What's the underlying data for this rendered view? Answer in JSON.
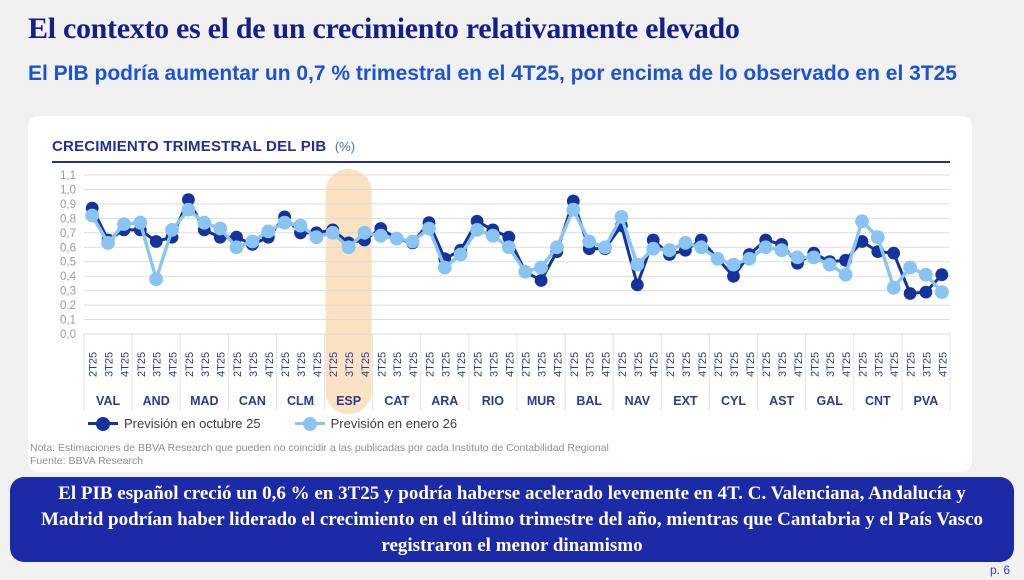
{
  "slide": {
    "title": "El contexto es el de un crecimiento relativamente elevado",
    "subtitle": "El PIB podría aumentar un 0,7 % trimestral en el 4T25, por encima de lo observado en el 3T25",
    "page_number": "p. 6"
  },
  "chart": {
    "title": "CRECIMIENTO TRIMESTRAL DEL PIB",
    "title_suffix": "(%)"
  },
  "notes": {
    "line1": "Nota: Estimaciones de BBVA Research que pueden no coincidir a las publicadas por cada Instituto de Contabilidad Regional",
    "line2": "Fuente: BBVA Research"
  },
  "banner": {
    "text": "El PIB español creció un 0,6 % en 3T25 y podría haberse acelerado levemente en 4T. C. Valenciana, Andalucía y Madrid podrían haber liderado el crecimiento en el último trimestre del año, mientras que Cantabria y el País Vasco registraron el menor dinamismo"
  },
  "chart_data": {
    "type": "line",
    "title": "CRECIMIENTO TRIMESTRAL DEL PIB (%)",
    "categories": [
      "VAL",
      "AND",
      "MAD",
      "CAN",
      "CLM",
      "ESP",
      "CAT",
      "ARA",
      "RIO",
      "MUR",
      "BAL",
      "NAV",
      "EXT",
      "CYL",
      "AST",
      "GAL",
      "CNT",
      "PVA"
    ],
    "quarters": [
      "2T25",
      "3T25",
      "4T25"
    ],
    "series": [
      {
        "name": "Previsión en octubre 25",
        "color": "#14339c",
        "values": [
          [
            0.87,
            0.65,
            0.72
          ],
          [
            0.72,
            0.64,
            0.67
          ],
          [
            0.93,
            0.72,
            0.67
          ],
          [
            0.67,
            0.62,
            0.67
          ],
          [
            0.81,
            0.7,
            0.7
          ],
          [
            0.72,
            0.63,
            0.65
          ],
          [
            0.73,
            0.66,
            0.63
          ],
          [
            0.77,
            0.52,
            0.58
          ],
          [
            0.78,
            0.72,
            0.67
          ],
          [
            0.43,
            0.37,
            0.57
          ],
          [
            0.92,
            0.59,
            0.59
          ],
          [
            0.75,
            0.34,
            0.65
          ],
          [
            0.55,
            0.58,
            0.65
          ],
          [
            0.52,
            0.4,
            0.55
          ],
          [
            0.65,
            0.62,
            0.49
          ],
          [
            0.56,
            0.5,
            0.51
          ],
          [
            0.64,
            0.57,
            0.56
          ],
          [
            0.28,
            0.29,
            0.41
          ]
        ]
      },
      {
        "name": "Previsión en enero 26",
        "color": "#8ac4f2",
        "values": [
          [
            0.82,
            0.63,
            0.76
          ],
          [
            0.77,
            0.38,
            0.72
          ],
          [
            0.86,
            0.77,
            0.73
          ],
          [
            0.6,
            0.64,
            0.71
          ],
          [
            0.77,
            0.75,
            0.67
          ],
          [
            0.7,
            0.6,
            0.7
          ],
          [
            0.68,
            0.66,
            0.64
          ],
          [
            0.73,
            0.46,
            0.55
          ],
          [
            0.72,
            0.68,
            0.6
          ],
          [
            0.43,
            0.46,
            0.6
          ],
          [
            0.86,
            0.64,
            0.6
          ],
          [
            0.81,
            0.48,
            0.59
          ],
          [
            0.58,
            0.63,
            0.6
          ],
          [
            0.52,
            0.48,
            0.52
          ],
          [
            0.6,
            0.58,
            0.53
          ],
          [
            0.53,
            0.48,
            0.41
          ],
          [
            0.78,
            0.67,
            0.32
          ],
          [
            0.46,
            0.41,
            0.29
          ]
        ]
      }
    ],
    "ylim": [
      0.0,
      1.1
    ],
    "ytick_step": 0.1,
    "grid": true,
    "legend_position": "bottom-left",
    "highlight": {
      "region": "ESP",
      "color": "#fbe2c3"
    },
    "axis_label_color": "#2b3a94",
    "ytick_label_color": "#9b9b9b",
    "gridline_color": "#d9d9d9"
  }
}
